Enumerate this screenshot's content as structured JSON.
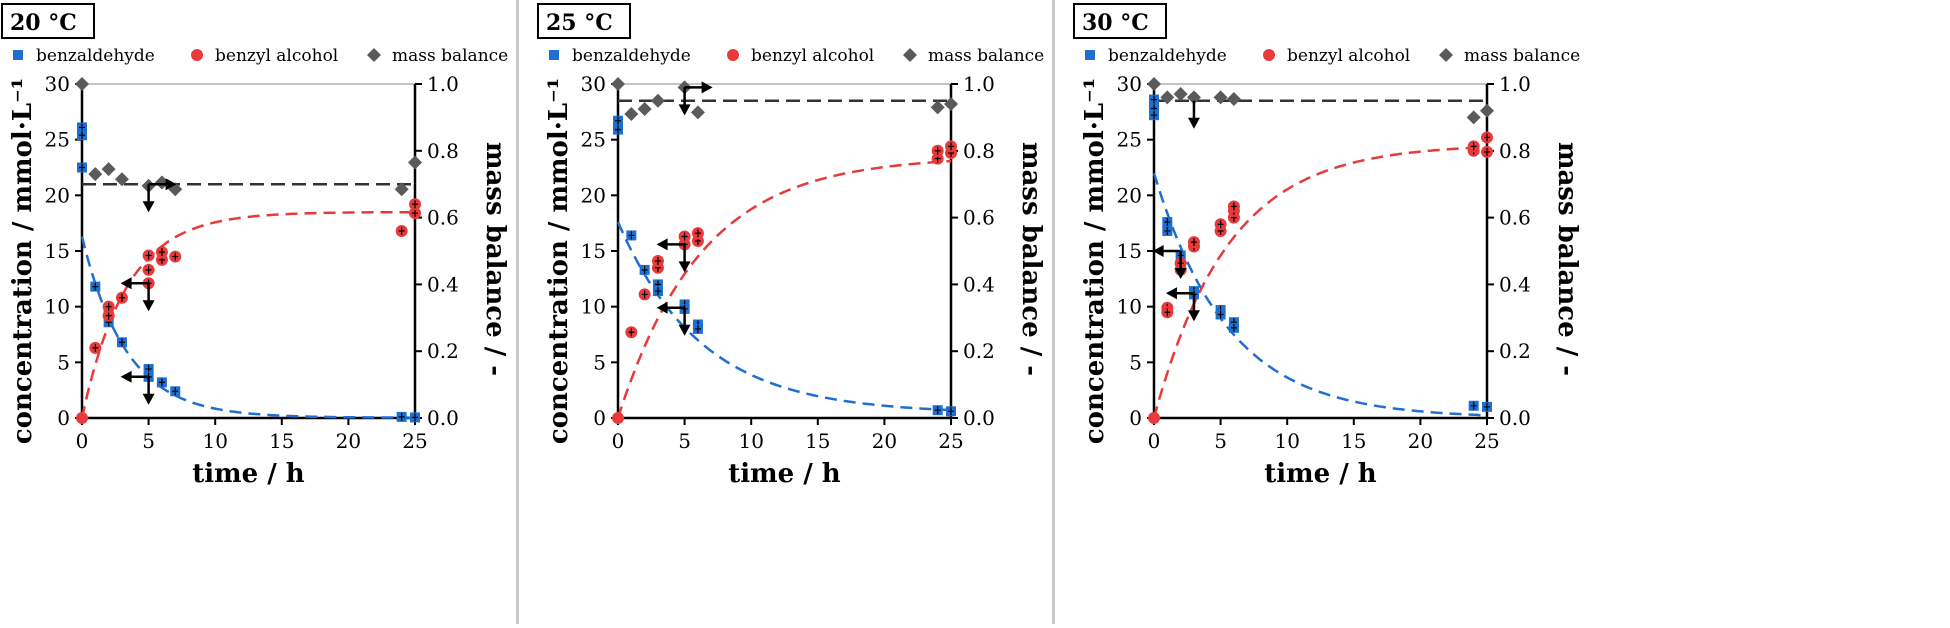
{
  "chart_data": [
    {
      "type": "scatter",
      "title": "20 °C",
      "xlabel": "time / h",
      "ylabel": "concentration / mmol·L⁻¹",
      "y2label": "mass balance / -",
      "xlim": [
        0,
        25
      ],
      "ylim": [
        0,
        30
      ],
      "y2lim": [
        0,
        1
      ],
      "xticks": [
        "0",
        "5",
        "10",
        "15",
        "20",
        "25"
      ],
      "yticks": [
        "0",
        "5",
        "10",
        "15",
        "20",
        "25",
        "30"
      ],
      "y2ticks": [
        "0.0",
        "0.2",
        "0.4",
        "0.6",
        "0.8",
        "1.0"
      ],
      "legend": [
        "benzaldehyde",
        "benzyl alcohol",
        "mass balance"
      ],
      "legend_position": "top",
      "mass_balance_line": 0.7,
      "series": [
        {
          "name": "benzaldehyde",
          "color": "#1f6fd1",
          "marker": "square",
          "points": [
            [
              0,
              26.1
            ],
            [
              0,
              25.4
            ],
            [
              0,
              22.5
            ],
            [
              1,
              11.8
            ],
            [
              2,
              8.6
            ],
            [
              2,
              9.3
            ],
            [
              3,
              6.8
            ],
            [
              5,
              4.4
            ],
            [
              5,
              3.7
            ],
            [
              6,
              3.2
            ],
            [
              7,
              2.4
            ],
            [
              24,
              0.1
            ],
            [
              25,
              0.05
            ]
          ]
        },
        {
          "name": "benzyl alcohol",
          "color": "#e83a3a",
          "marker": "circle",
          "points": [
            [
              0,
              0
            ],
            [
              1,
              6.3
            ],
            [
              2,
              9.2
            ],
            [
              2,
              10.0
            ],
            [
              3,
              10.8
            ],
            [
              5,
              14.6
            ],
            [
              5,
              13.3
            ],
            [
              5,
              12.1
            ],
            [
              6,
              14.2
            ],
            [
              6,
              14.9
            ],
            [
              7,
              14.5
            ],
            [
              24,
              16.8
            ],
            [
              25,
              18.4
            ],
            [
              25,
              19.2
            ]
          ]
        },
        {
          "name": "mass balance",
          "color": "#5a5a5a",
          "marker": "diamond",
          "axis": "right",
          "points": [
            [
              0,
              1.0
            ],
            [
              1,
              0.73
            ],
            [
              2,
              0.745
            ],
            [
              3,
              0.715
            ],
            [
              5,
              0.695
            ],
            [
              6,
              0.705
            ],
            [
              7,
              0.685
            ],
            [
              24,
              0.685
            ],
            [
              25,
              0.765
            ]
          ]
        }
      ],
      "fits": [
        {
          "series": "benzaldehyde",
          "color": "#1f6fd1",
          "from": 16.3,
          "to": 0.03,
          "k": 0.3
        },
        {
          "series": "benzyl alcohol",
          "color": "#e83a3a",
          "from": 0,
          "to": 18.5,
          "k": 0.3
        }
      ],
      "arrows": [
        {
          "x": 5,
          "y": 0.7,
          "axis": "right",
          "dirs": [
            "down",
            "right"
          ]
        },
        {
          "x": 5,
          "y": 12.1,
          "axis": "left",
          "dirs": [
            "left",
            "down"
          ]
        },
        {
          "x": 5,
          "y": 3.7,
          "axis": "left",
          "dirs": [
            "left",
            "down"
          ]
        }
      ]
    },
    {
      "type": "scatter",
      "title": "25 °C",
      "xlabel": "time / h",
      "ylabel": "concentration / mmol·L⁻¹",
      "y2label": "mass balance / -",
      "xlim": [
        0,
        25
      ],
      "ylim": [
        0,
        30
      ],
      "y2lim": [
        0,
        1
      ],
      "xticks": [
        "0",
        "5",
        "10",
        "15",
        "20",
        "25"
      ],
      "yticks": [
        "0",
        "5",
        "10",
        "15",
        "20",
        "25",
        "30"
      ],
      "y2ticks": [
        "0.0",
        "0.2",
        "0.4",
        "0.6",
        "0.8",
        "1.0"
      ],
      "legend": [
        "benzaldehyde",
        "benzyl alcohol",
        "mass balance"
      ],
      "legend_position": "top",
      "mass_balance_line": 0.95,
      "series": [
        {
          "name": "benzaldehyde",
          "color": "#1f6fd1",
          "marker": "square",
          "points": [
            [
              0,
              26.7
            ],
            [
              0,
              25.9
            ],
            [
              1,
              16.4
            ],
            [
              2,
              13.3
            ],
            [
              3,
              12.0
            ],
            [
              3,
              11.4
            ],
            [
              5,
              10.2
            ],
            [
              5,
              9.8
            ],
            [
              6,
              8.4
            ],
            [
              6,
              8.0
            ],
            [
              24,
              0.7
            ],
            [
              25,
              0.6
            ]
          ]
        },
        {
          "name": "benzyl alcohol",
          "color": "#e83a3a",
          "marker": "circle",
          "points": [
            [
              0,
              0
            ],
            [
              1,
              7.7
            ],
            [
              2,
              11.1
            ],
            [
              3,
              13.5
            ],
            [
              3,
              14.1
            ],
            [
              5,
              15.6
            ],
            [
              5,
              16.3
            ],
            [
              6,
              15.9
            ],
            [
              6,
              16.6
            ],
            [
              24,
              23.3
            ],
            [
              24,
              24.0
            ],
            [
              25,
              23.8
            ],
            [
              25,
              24.4
            ]
          ]
        },
        {
          "name": "mass balance",
          "color": "#5a5a5a",
          "marker": "diamond",
          "axis": "right",
          "points": [
            [
              0,
              1.0
            ],
            [
              1,
              0.91
            ],
            [
              2,
              0.925
            ],
            [
              3,
              0.95
            ],
            [
              5,
              0.99
            ],
            [
              6,
              0.915
            ],
            [
              24,
              0.93
            ],
            [
              25,
              0.94
            ]
          ]
        }
      ],
      "fits": [
        {
          "series": "benzaldehyde",
          "color": "#1f6fd1",
          "from": 17.6,
          "to": 0.4,
          "k": 0.16
        },
        {
          "series": "benzyl alcohol",
          "color": "#e83a3a",
          "from": 0,
          "to": 23.5,
          "k": 0.16
        }
      ],
      "arrows": [
        {
          "x": 5,
          "y": 0.99,
          "axis": "right",
          "dirs": [
            "down",
            "right"
          ]
        },
        {
          "x": 5,
          "y": 15.6,
          "axis": "left",
          "dirs": [
            "left",
            "down"
          ]
        },
        {
          "x": 5,
          "y": 9.9,
          "axis": "left",
          "dirs": [
            "left",
            "down"
          ]
        }
      ]
    },
    {
      "type": "scatter",
      "title": "30 °C",
      "xlabel": "time / h",
      "ylabel": "concentration / mmol·L⁻¹",
      "y2label": "mass balance / -",
      "xlim": [
        0,
        25
      ],
      "ylim": [
        0,
        30
      ],
      "y2lim": [
        0,
        1
      ],
      "xticks": [
        "0",
        "5",
        "10",
        "15",
        "20",
        "25"
      ],
      "yticks": [
        "0",
        "5",
        "10",
        "15",
        "20",
        "25",
        "30"
      ],
      "y2ticks": [
        "0.0",
        "0.2",
        "0.4",
        "0.6",
        "0.8",
        "1.0"
      ],
      "legend": [
        "benzaldehyde",
        "benzyl alcohol",
        "mass balance"
      ],
      "legend_position": "top",
      "mass_balance_line": 0.95,
      "series": [
        {
          "name": "benzaldehyde",
          "color": "#1f6fd1",
          "marker": "square",
          "points": [
            [
              0,
              28.6
            ],
            [
              0,
              27.8
            ],
            [
              0,
              27.2
            ],
            [
              1,
              17.6
            ],
            [
              1,
              16.8
            ],
            [
              2,
              14.6
            ],
            [
              2,
              13.8
            ],
            [
              3,
              11.4
            ],
            [
              3,
              11.1
            ],
            [
              5,
              9.7
            ],
            [
              5,
              9.3
            ],
            [
              6,
              8.6
            ],
            [
              6,
              8.1
            ],
            [
              24,
              1.1
            ],
            [
              25,
              1.0
            ]
          ]
        },
        {
          "name": "benzyl alcohol",
          "color": "#e83a3a",
          "marker": "circle",
          "points": [
            [
              0,
              0
            ],
            [
              1,
              9.9
            ],
            [
              1,
              9.5
            ],
            [
              2,
              13.3
            ],
            [
              2,
              13.9
            ],
            [
              3,
              15.4
            ],
            [
              3,
              15.8
            ],
            [
              5,
              16.8
            ],
            [
              5,
              17.4
            ],
            [
              6,
              18.0
            ],
            [
              6,
              18.6
            ],
            [
              6,
              19.0
            ],
            [
              24,
              24.0
            ],
            [
              24,
              24.4
            ],
            [
              25,
              23.9
            ],
            [
              25,
              25.2
            ]
          ]
        },
        {
          "name": "mass balance",
          "color": "#5a5a5a",
          "marker": "diamond",
          "axis": "right",
          "points": [
            [
              0,
              1.0
            ],
            [
              1,
              0.96
            ],
            [
              2,
              0.97
            ],
            [
              3,
              0.96
            ],
            [
              5,
              0.96
            ],
            [
              6,
              0.955
            ],
            [
              24,
              0.9
            ],
            [
              25,
              0.92
            ]
          ]
        }
      ],
      "fits": [
        {
          "series": "benzaldehyde",
          "color": "#1f6fd1",
          "from": 22.0,
          "to": 0.0,
          "k": 0.18
        },
        {
          "series": "benzyl alcohol",
          "color": "#e83a3a",
          "from": 0,
          "to": 24.6,
          "k": 0.18
        }
      ],
      "arrows": [
        {
          "x": 3,
          "y": 0.95,
          "axis": "right",
          "dirs": [
            "down"
          ]
        },
        {
          "x": 2,
          "y": 15.0,
          "axis": "left",
          "dirs": [
            "left",
            "down"
          ]
        },
        {
          "x": 3,
          "y": 11.2,
          "axis": "left",
          "dirs": [
            "left",
            "down"
          ]
        }
      ]
    }
  ]
}
